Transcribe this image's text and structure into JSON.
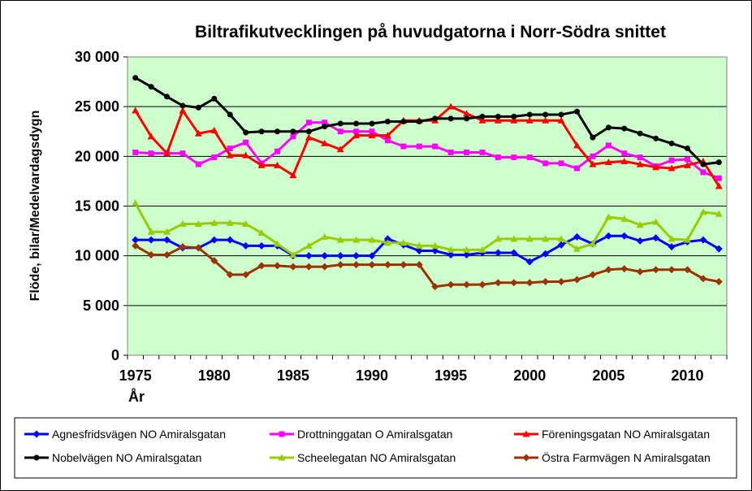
{
  "chart_data": {
    "type": "line",
    "title": "Biltrafikutvecklingen på huvudgatorna i Norr-Södra snittet",
    "xlabel": "År",
    "ylabel": "Flöde, bilar/Medelvardagsdygn",
    "xlim": [
      1975,
      2012
    ],
    "ylim": [
      0,
      30000
    ],
    "x_ticks": [
      1975,
      1980,
      1985,
      1990,
      1995,
      2000,
      2005,
      2010
    ],
    "y_ticks": [
      0,
      5000,
      10000,
      15000,
      20000,
      25000,
      30000
    ],
    "x_tick_labels": [
      "1975",
      "1980",
      "1985",
      "1990",
      "1995",
      "2000",
      "2005",
      "2010"
    ],
    "y_tick_labels": [
      "0",
      "5 000",
      "10 000",
      "15 000",
      "20 000",
      "25 000",
      "30 000"
    ],
    "grid": "horizontal",
    "plot_background": "#ccffcc",
    "legend_position": "bottom",
    "x": [
      1975,
      1976,
      1977,
      1978,
      1979,
      1980,
      1981,
      1982,
      1983,
      1984,
      1985,
      1986,
      1987,
      1988,
      1989,
      1990,
      1991,
      1992,
      1993,
      1994,
      1995,
      1996,
      1997,
      1998,
      1999,
      2000,
      2001,
      2002,
      2003,
      2004,
      2005,
      2006,
      2007,
      2008,
      2009,
      2010,
      2011,
      2012
    ],
    "series": [
      {
        "name": "Agnesfridsvägen NO Amiralsgatan",
        "color": "#0000ff",
        "marker": "diamond",
        "values": [
          11600,
          11600,
          11600,
          10800,
          10800,
          11600,
          11600,
          11000,
          11000,
          11000,
          10000,
          10000,
          10000,
          10000,
          10000,
          10000,
          11700,
          11100,
          10500,
          10500,
          10100,
          10100,
          10300,
          10300,
          10300,
          9400,
          10200,
          11100,
          11900,
          11200,
          12000,
          12000,
          11500,
          11800,
          10900,
          11400,
          11600,
          10700
        ]
      },
      {
        "name": "Drottninggatan O Amiralsgatan",
        "color": "#ff00ff",
        "marker": "square",
        "values": [
          20400,
          20300,
          20300,
          20300,
          19200,
          19900,
          20800,
          21400,
          19300,
          20500,
          22000,
          23400,
          23400,
          22500,
          22500,
          22500,
          21600,
          21000,
          21000,
          21000,
          20400,
          20400,
          20400,
          19900,
          19900,
          19900,
          19300,
          19300,
          18800,
          20000,
          21100,
          20300,
          19900,
          19000,
          19600,
          19700,
          18400,
          17800
        ]
      },
      {
        "name": "Föreningsgatan NO Amiralsgatan",
        "color": "#ff0000",
        "marker": "triangle",
        "values": [
          24600,
          22000,
          20300,
          24600,
          22300,
          22600,
          20100,
          20100,
          19100,
          19100,
          18100,
          21900,
          21300,
          20700,
          22100,
          22100,
          22100,
          23600,
          23600,
          23600,
          25000,
          24300,
          23600,
          23600,
          23600,
          23600,
          23600,
          23600,
          21100,
          19200,
          19400,
          19500,
          19200,
          18900,
          18800,
          19100,
          19500,
          17000
        ]
      },
      {
        "name": "Nobelvägen NO Amiralsgatan",
        "color": "#000000",
        "marker": "circle",
        "values": [
          27900,
          27000,
          26000,
          25100,
          24900,
          25800,
          24200,
          22400,
          22500,
          22500,
          22500,
          22500,
          23000,
          23300,
          23300,
          23300,
          23500,
          23500,
          23500,
          23800,
          23800,
          23800,
          24000,
          24000,
          24000,
          24200,
          24200,
          24200,
          24500,
          21900,
          22900,
          22800,
          22300,
          21800,
          21300,
          20800,
          19200,
          19400
        ]
      },
      {
        "name": "Scheelegatan NO Amiralsgatan",
        "color": "#99cc00",
        "marker": "triangle",
        "values": [
          15300,
          12400,
          12400,
          13200,
          13200,
          13300,
          13300,
          13200,
          12300,
          11200,
          10100,
          11000,
          11900,
          11600,
          11600,
          11600,
          11300,
          11300,
          11000,
          11000,
          10600,
          10600,
          10600,
          11700,
          11700,
          11700,
          11700,
          11700,
          10700,
          11200,
          13900,
          13700,
          13100,
          13400,
          11700,
          11600,
          14400,
          14200
        ]
      },
      {
        "name": "Östra Farmvägen N Amiralsgatan",
        "color": "#993300",
        "marker": "diamond",
        "values": [
          11000,
          10100,
          10100,
          10900,
          10800,
          9500,
          8100,
          8100,
          9000,
          9000,
          8900,
          8900,
          8900,
          9100,
          9100,
          9100,
          9100,
          9100,
          9100,
          6900,
          7100,
          7100,
          7100,
          7300,
          7300,
          7300,
          7400,
          7400,
          7600,
          8100,
          8600,
          8700,
          8400,
          8600,
          8600,
          8600,
          7700,
          7400
        ]
      }
    ]
  }
}
